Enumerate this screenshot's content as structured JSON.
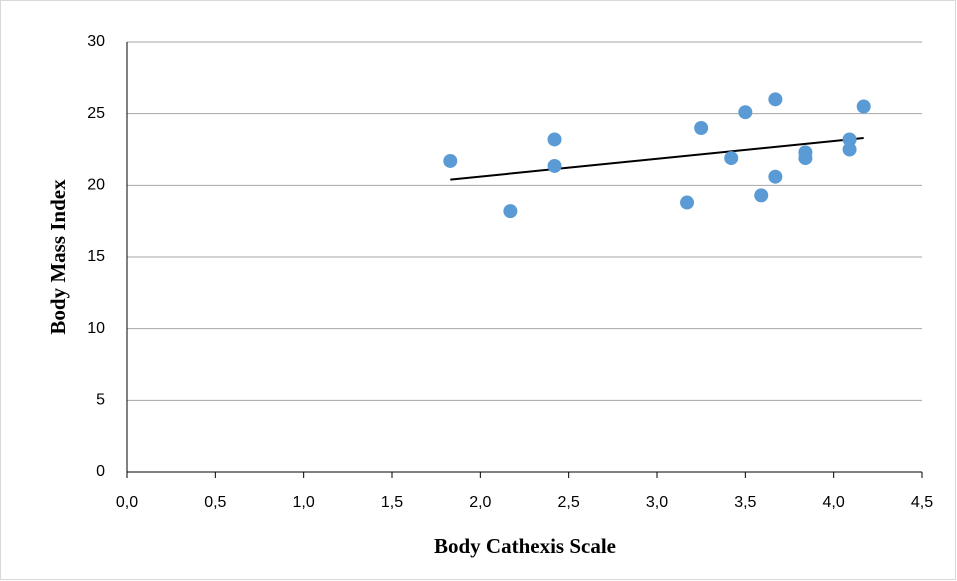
{
  "chart_data": {
    "type": "scatter",
    "x_label": "Body Cathexis Scale",
    "y_label": "Body Mass Index",
    "series": [
      {
        "color": "#5b9bd5",
        "x": [
          1.83,
          2.17,
          2.42,
          2.42,
          3.17,
          3.25,
          3.42,
          3.5,
          3.59,
          3.67,
          3.67,
          3.84,
          3.84,
          4.09,
          4.09,
          4.17
        ],
        "values": [
          21.7,
          18.2,
          23.2,
          21.35,
          18.8,
          24.0,
          21.9,
          25.1,
          19.3,
          26.0,
          20.6,
          22.3,
          21.9,
          23.2,
          22.5,
          25.5
        ]
      }
    ],
    "trendline": {
      "color": "#000000",
      "x": [
        1.83,
        4.17
      ],
      "values": [
        20.4,
        23.3
      ]
    },
    "xlim": [
      0,
      4.5
    ],
    "xticks": [
      {
        "value": 0,
        "label": "0,0"
      },
      {
        "value": 0.5,
        "label": "0,5"
      },
      {
        "value": 1,
        "label": "1,0"
      },
      {
        "value": 1.5,
        "label": "1,5"
      },
      {
        "value": 2,
        "label": "2,0"
      },
      {
        "value": 2.5,
        "label": "2,5"
      },
      {
        "value": 3,
        "label": "3,0"
      },
      {
        "value": 3.5,
        "label": "3,5"
      },
      {
        "value": 4,
        "label": "4,0"
      },
      {
        "value": 4.5,
        "label": "4,5"
      }
    ],
    "ylim": [
      0,
      30
    ],
    "yticks": [
      0,
      5,
      10,
      15,
      20,
      25,
      30
    ],
    "grid": true
  }
}
